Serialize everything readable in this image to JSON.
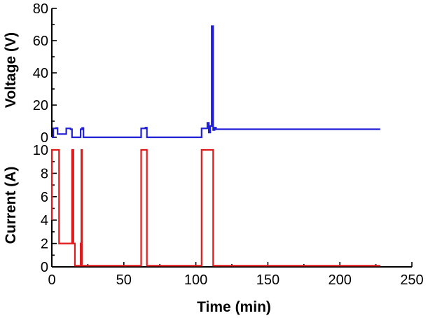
{
  "chart_data": [
    {
      "type": "line",
      "panel": "top",
      "ylabel": "Voltage (V)",
      "ylim": [
        0,
        80
      ],
      "yticks": [
        0,
        20,
        40,
        60,
        80
      ],
      "xlim": [
        0,
        250
      ],
      "color": "#1f1fd6",
      "series": [
        {
          "x": [
            0,
            1,
            1,
            3,
            3,
            4,
            4,
            10,
            10,
            13,
            13,
            14,
            14,
            20,
            20,
            21,
            21,
            22,
            22,
            62,
            62,
            65,
            65,
            66,
            66,
            104,
            104,
            108,
            108,
            109,
            109,
            110,
            110,
            111,
            111,
            112,
            112,
            113,
            113,
            114,
            114,
            228
          ],
          "y": [
            0,
            0,
            5.5,
            5.5,
            5.8,
            5.8,
            2,
            2,
            5.5,
            5.5,
            5,
            5,
            0,
            0,
            5,
            5,
            5.8,
            5.8,
            0,
            0,
            5.5,
            5.5,
            6,
            6,
            0,
            0,
            5.5,
            5.5,
            9,
            9,
            3,
            3,
            7,
            7,
            69,
            69,
            4.5,
            4.5,
            6,
            6,
            5,
            5
          ]
        }
      ]
    },
    {
      "type": "line",
      "panel": "bottom",
      "xlabel": "Time (min)",
      "ylabel": "Current (A)",
      "ylim": [
        0,
        10
      ],
      "yticks": [
        0,
        2,
        4,
        6,
        8,
        10
      ],
      "xlim": [
        0,
        250
      ],
      "xticks": [
        0,
        50,
        100,
        150,
        200,
        250
      ],
      "color": "#e2191a",
      "series": [
        {
          "x": [
            0,
            0,
            1,
            1,
            5,
            5,
            14,
            14,
            15,
            15,
            16,
            16,
            20,
            20,
            20.5,
            20.5,
            21,
            21,
            22,
            22,
            62,
            62,
            64,
            64,
            66,
            66,
            104,
            104,
            112,
            112,
            228
          ],
          "y": [
            4,
            10,
            10,
            10,
            10,
            2,
            2,
            10,
            10,
            2,
            2,
            0.1,
            0.1,
            2,
            2,
            10,
            10,
            0.1,
            0.1,
            0.1,
            0.1,
            10,
            10,
            10,
            10,
            0.1,
            0.1,
            10,
            10,
            0.1,
            0.1
          ]
        }
      ]
    }
  ]
}
